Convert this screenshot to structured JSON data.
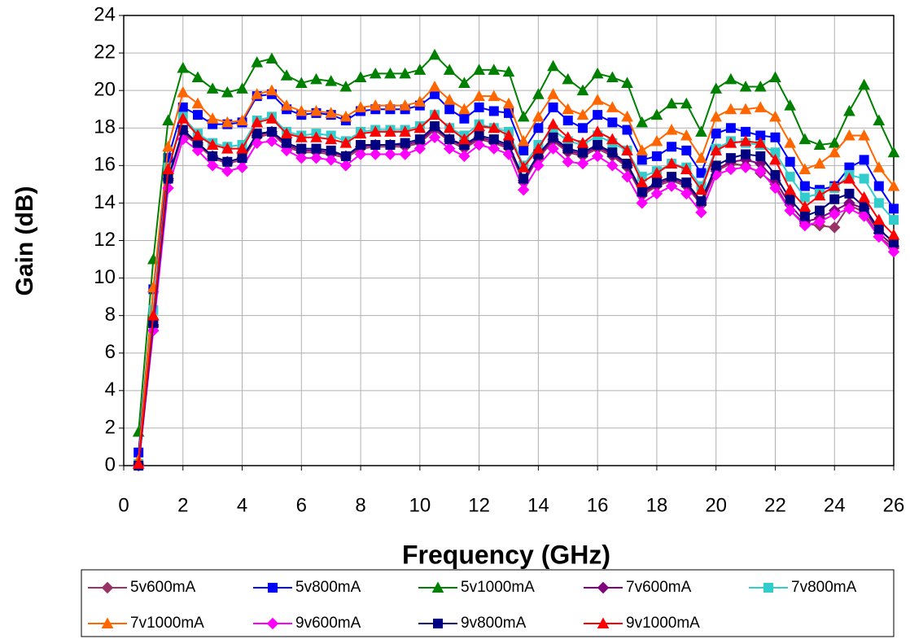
{
  "chart_data": {
    "type": "line",
    "x_label": "Frequency (GHz)",
    "y_label": "Gain (dB)",
    "x": [
      0.5,
      1,
      1.5,
      2,
      2.5,
      3,
      3.5,
      4,
      4.5,
      5,
      5.5,
      6,
      6.5,
      7,
      7.5,
      8,
      8.5,
      9,
      9.5,
      10,
      10.5,
      11,
      11.5,
      12,
      12.5,
      13,
      13.5,
      14,
      14.5,
      15,
      15.5,
      16,
      16.5,
      17,
      17.5,
      18,
      18.5,
      19,
      19.5,
      20,
      20.5,
      21,
      21.5,
      22,
      22.5,
      23,
      23.5,
      24,
      24.5,
      25,
      25.5,
      26
    ],
    "xlim": [
      0,
      26
    ],
    "xticks": [
      0,
      2,
      4,
      6,
      8,
      10,
      12,
      14,
      16,
      18,
      20,
      22,
      24,
      26
    ],
    "ylim": [
      0,
      24
    ],
    "yticks": [
      0,
      2,
      4,
      6,
      8,
      10,
      12,
      14,
      16,
      18,
      20,
      22,
      24
    ],
    "grid": true,
    "legend": "bottom",
    "series": [
      {
        "name": "5v600mA",
        "color": "#993366",
        "marker": "diamond",
        "values": [
          0,
          7.4,
          15.2,
          17.7,
          17.1,
          16.4,
          16.1,
          16.3,
          17.5,
          17.7,
          17.0,
          16.7,
          16.7,
          16.6,
          16.4,
          16.9,
          17.0,
          17.0,
          17.0,
          17.2,
          17.9,
          17.3,
          16.9,
          17.4,
          17.2,
          16.9,
          15.1,
          16.4,
          17.3,
          16.7,
          16.5,
          16.9,
          16.5,
          15.9,
          14.4,
          14.9,
          15.2,
          14.9,
          13.9,
          15.7,
          16.1,
          16.0,
          15.6,
          15.0,
          13.6,
          12.9,
          12.8,
          12.7,
          13.9,
          13.5,
          12.2,
          11.6
        ]
      },
      {
        "name": "5v800mA",
        "color": "#0000ff",
        "marker": "square",
        "values": [
          0.7,
          9.4,
          16.4,
          19.1,
          18.7,
          18.2,
          18.2,
          18.3,
          19.7,
          19.8,
          19.0,
          18.7,
          18.8,
          18.7,
          18.4,
          18.9,
          19.0,
          19.0,
          19.0,
          19.2,
          19.8,
          19.0,
          18.5,
          19.1,
          18.9,
          18.8,
          16.8,
          18.0,
          19.1,
          18.4,
          18.0,
          18.7,
          18.3,
          17.9,
          16.3,
          16.5,
          17.0,
          16.8,
          15.6,
          17.7,
          18.0,
          17.8,
          17.6,
          17.5,
          16.2,
          14.9,
          14.7,
          14.9,
          15.9,
          16.3,
          14.9,
          13.7
        ]
      },
      {
        "name": "5v1000mA",
        "color": "#008000",
        "marker": "triangle",
        "values": [
          1.8,
          11,
          18.4,
          21.2,
          20.7,
          20.1,
          19.9,
          20.1,
          21.5,
          21.7,
          20.8,
          20.4,
          20.6,
          20.5,
          20.2,
          20.7,
          20.9,
          20.9,
          20.9,
          21.1,
          21.9,
          21.1,
          20.4,
          21.1,
          21.1,
          21.0,
          18.6,
          19.8,
          21.3,
          20.6,
          20.0,
          20.9,
          20.7,
          20.4,
          18.3,
          18.7,
          19.3,
          19.3,
          17.8,
          20.1,
          20.6,
          20.2,
          20.2,
          20.7,
          19.2,
          17.4,
          17.1,
          17.2,
          18.9,
          20.3,
          18.4,
          16.7
        ]
      },
      {
        "name": "7v600mA",
        "color": "#800080",
        "marker": "diamond",
        "values": [
          0,
          7.5,
          15.3,
          17.8,
          17.2,
          16.5,
          16.2,
          16.4,
          17.6,
          17.8,
          17.1,
          16.8,
          16.8,
          16.7,
          16.5,
          17.0,
          17.1,
          17.1,
          17.1,
          17.3,
          18.0,
          17.4,
          17.0,
          17.5,
          17.3,
          17.0,
          15.2,
          16.5,
          17.4,
          16.8,
          16.6,
          17.0,
          16.6,
          16.0,
          14.5,
          15.0,
          15.3,
          15.0,
          14.0,
          15.8,
          16.2,
          16.3,
          16.1,
          15.2,
          13.9,
          13.0,
          13.2,
          13.6,
          14.0,
          13.7,
          12.4,
          11.7
        ]
      },
      {
        "name": "7v800mA",
        "color": "#33cccc",
        "marker": "square",
        "values": [
          0.1,
          8.3,
          15.9,
          18.6,
          17.7,
          17.2,
          17.0,
          17.1,
          18.4,
          18.6,
          17.8,
          17.6,
          17.7,
          17.6,
          17.3,
          17.8,
          17.9,
          17.9,
          17.9,
          18.1,
          18.7,
          18.0,
          17.6,
          18.2,
          18.0,
          17.8,
          16.0,
          17.1,
          17.9,
          17.3,
          17.1,
          17.6,
          17.2,
          16.8,
          15.4,
          15.7,
          16.1,
          15.9,
          14.9,
          16.9,
          17.3,
          17.2,
          17.1,
          16.7,
          15.4,
          14.3,
          14.5,
          14.8,
          15.5,
          15.3,
          14.0,
          13.1
        ]
      },
      {
        "name": "7v1000mA",
        "color": "#ff6600",
        "marker": "triangle",
        "values": [
          0.3,
          9.5,
          17.0,
          19.9,
          19.3,
          18.5,
          18.3,
          18.4,
          19.8,
          20.0,
          19.2,
          18.9,
          18.9,
          18.8,
          18.6,
          19.1,
          19.2,
          19.2,
          19.2,
          19.4,
          20.2,
          19.5,
          19.0,
          19.7,
          19.7,
          19.3,
          17.3,
          18.6,
          19.8,
          19.0,
          18.7,
          19.5,
          19.1,
          18.6,
          16.8,
          17.3,
          17.9,
          17.6,
          16.4,
          18.6,
          19.0,
          19.0,
          19.1,
          18.6,
          17.2,
          15.8,
          16.1,
          16.7,
          17.6,
          17.6,
          15.9,
          14.9
        ]
      },
      {
        "name": "9v600mA",
        "color": "#ff00ff",
        "marker": "diamond",
        "values": [
          0,
          7.2,
          14.8,
          17.4,
          16.8,
          16.0,
          15.7,
          15.9,
          17.2,
          17.3,
          16.8,
          16.4,
          16.4,
          16.3,
          16.0,
          16.6,
          16.6,
          16.6,
          16.6,
          16.9,
          17.5,
          16.9,
          16.5,
          17.1,
          16.9,
          16.6,
          14.7,
          16.0,
          16.9,
          16.2,
          16.1,
          16.5,
          16.0,
          15.4,
          14.0,
          14.5,
          14.9,
          14.5,
          13.5,
          15.5,
          15.8,
          15.9,
          15.7,
          14.8,
          13.6,
          12.8,
          13.0,
          13.4,
          13.7,
          13.3,
          12.2,
          11.4
        ]
      },
      {
        "name": "9v800mA",
        "color": "#000080",
        "marker": "square",
        "values": [
          0,
          7.6,
          15.3,
          17.9,
          17.2,
          16.5,
          16.2,
          16.4,
          17.7,
          17.8,
          17.2,
          16.9,
          16.9,
          16.8,
          16.5,
          17.1,
          17.1,
          17.1,
          17.2,
          17.4,
          18.1,
          17.4,
          17.1,
          17.6,
          17.4,
          17.1,
          15.3,
          16.6,
          17.5,
          16.9,
          16.7,
          17.1,
          16.7,
          16.1,
          14.6,
          15.1,
          15.4,
          15.1,
          14.1,
          16.0,
          16.4,
          16.6,
          16.5,
          15.5,
          14.2,
          13.3,
          13.6,
          14.2,
          14.5,
          13.8,
          12.6,
          11.9
        ]
      },
      {
        "name": "9v1000mA",
        "color": "#ff0000",
        "marker": "triangle",
        "values": [
          0.1,
          8.0,
          15.8,
          18.5,
          17.6,
          17.1,
          16.9,
          16.9,
          18.3,
          18.5,
          17.7,
          17.5,
          17.5,
          17.4,
          17.2,
          17.7,
          17.8,
          17.8,
          17.8,
          18.0,
          18.7,
          18.0,
          17.4,
          18.1,
          18.0,
          17.6,
          15.9,
          16.9,
          18.2,
          17.5,
          17.2,
          17.8,
          17.4,
          16.8,
          15.1,
          15.6,
          16.1,
          15.8,
          14.7,
          16.8,
          17.2,
          17.3,
          17.2,
          16.3,
          14.7,
          13.8,
          14.4,
          14.9,
          15.3,
          14.3,
          13.1,
          12.3
        ]
      }
    ]
  }
}
